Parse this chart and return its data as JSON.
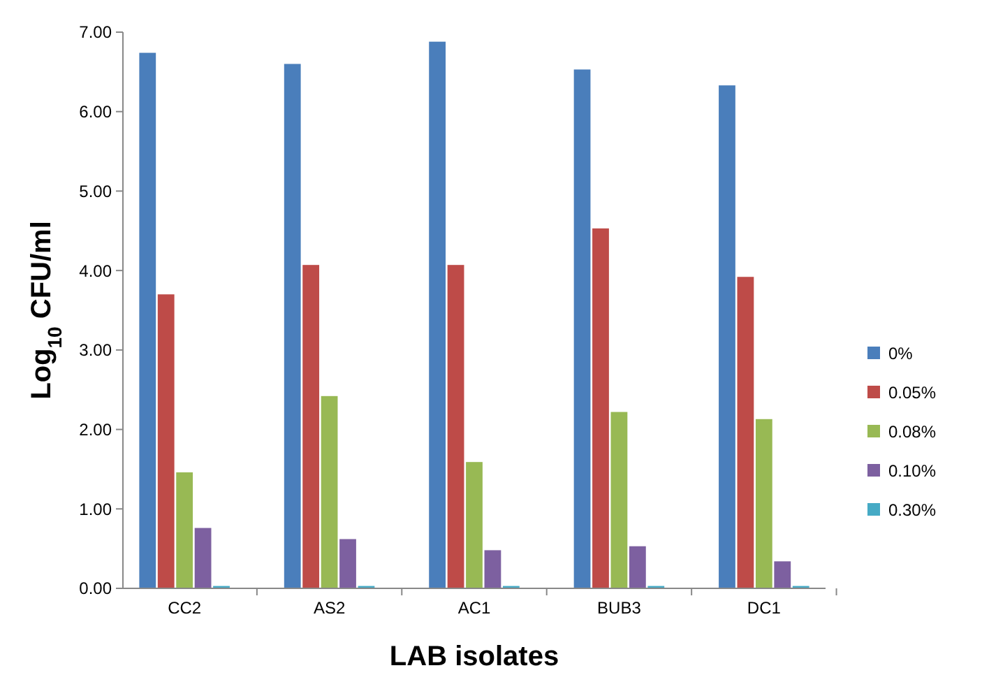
{
  "chart_data": {
    "type": "bar",
    "xlabel": "LAB isolates",
    "ylabel": "Log$_{10}$ CFU/ml",
    "categories": [
      "CC2",
      "AS2",
      "AC1",
      "BUB3",
      "DC1"
    ],
    "series": [
      {
        "name": "0%",
        "color": "#4a7ebb",
        "values": [
          6.74,
          6.6,
          6.88,
          6.53,
          6.33
        ]
      },
      {
        "name": "0.05%",
        "color": "#be4b48",
        "values": [
          3.7,
          4.07,
          4.07,
          4.53,
          3.92
        ]
      },
      {
        "name": "0.08%",
        "color": "#98b954",
        "values": [
          1.46,
          2.42,
          1.59,
          2.22,
          2.13
        ]
      },
      {
        "name": "0.10%",
        "color": "#7d60a0",
        "values": [
          0.76,
          0.62,
          0.48,
          0.53,
          0.34
        ]
      },
      {
        "name": "0.30%",
        "color": "#46aac5",
        "values": [
          0.03,
          0.03,
          0.03,
          0.03,
          0.03
        ]
      }
    ],
    "ylim": [
      0,
      7
    ],
    "yticks": [
      {
        "value": 0,
        "label": "0.00"
      },
      {
        "value": 1,
        "label": "1.00"
      },
      {
        "value": 2,
        "label": "2.00"
      },
      {
        "value": 3,
        "label": "3.00"
      },
      {
        "value": 4,
        "label": "4.00"
      },
      {
        "value": 5,
        "label": "5.00"
      },
      {
        "value": 6,
        "label": "6.00"
      },
      {
        "value": 7,
        "label": "7.00"
      }
    ],
    "grid": false,
    "legend": "right"
  }
}
